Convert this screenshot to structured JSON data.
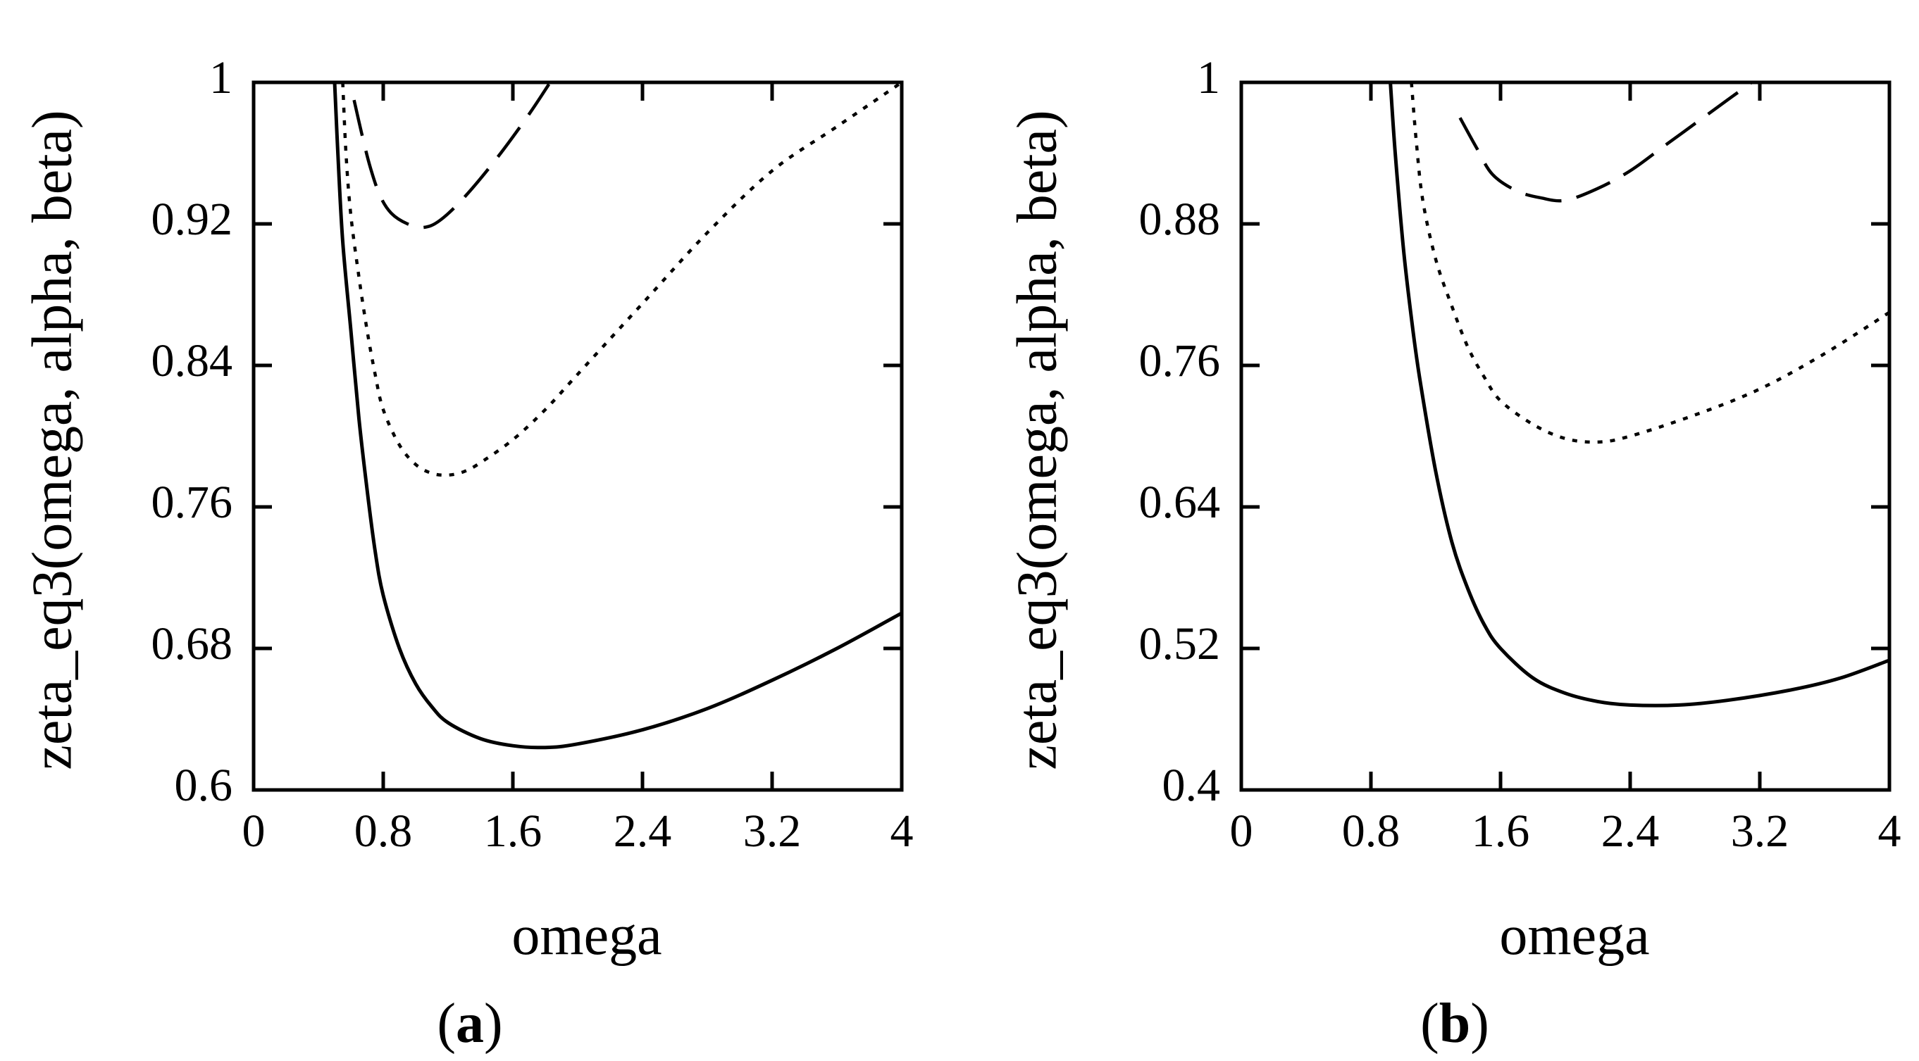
{
  "chart_data": [
    {
      "type": "line",
      "panel_label": "a",
      "xlabel": "omega",
      "ylabel": "zeta_eq3(omega, alpha, beta)",
      "xlim": [
        0,
        4
      ],
      "ylim": [
        0.6,
        1
      ],
      "xticks": [
        0,
        0.8,
        1.6,
        2.4,
        3.2,
        4
      ],
      "xtick_labels": [
        "0",
        "0.8",
        "1.6",
        "2.4",
        "3.2",
        "4"
      ],
      "yticks": [
        0.6,
        0.68,
        0.76,
        0.84,
        0.92,
        1
      ],
      "ytick_labels": [
        "0.6",
        "0.68",
        "0.76",
        "0.84",
        "0.92",
        "1"
      ],
      "series": [
        {
          "name": "solid",
          "style": "solid",
          "x": [
            0.5,
            0.52,
            0.55,
            0.6,
            0.65,
            0.7,
            0.75,
            0.8,
            0.9,
            1.0,
            1.1,
            1.2,
            1.4,
            1.6,
            1.8,
            2.0,
            2.4,
            2.8,
            3.2,
            3.6,
            4.0
          ],
          "y": [
            1.0,
            0.96,
            0.91,
            0.86,
            0.81,
            0.77,
            0.735,
            0.71,
            0.68,
            0.66,
            0.647,
            0.638,
            0.629,
            0.625,
            0.624,
            0.626,
            0.634,
            0.646,
            0.662,
            0.68,
            0.7
          ]
        },
        {
          "name": "dotted",
          "style": "dotted",
          "x": [
            0.55,
            0.57,
            0.6,
            0.65,
            0.7,
            0.75,
            0.8,
            0.9,
            1.0,
            1.1,
            1.2,
            1.3,
            1.4,
            1.6,
            1.8,
            2.0,
            2.4,
            2.8,
            3.2,
            3.6,
            4.0
          ],
          "y": [
            1.0,
            0.96,
            0.925,
            0.89,
            0.86,
            0.835,
            0.815,
            0.795,
            0.784,
            0.779,
            0.778,
            0.78,
            0.785,
            0.798,
            0.815,
            0.835,
            0.875,
            0.915,
            0.95,
            0.975,
            1.0
          ]
        },
        {
          "name": "dashed",
          "style": "dashed",
          "x": [
            0.62,
            0.67,
            0.72,
            0.78,
            0.85,
            0.95,
            1.05,
            1.15,
            1.3,
            1.5,
            1.7,
            1.83
          ],
          "y": [
            0.99,
            0.97,
            0.952,
            0.936,
            0.926,
            0.92,
            0.918,
            0.922,
            0.935,
            0.957,
            0.982,
            1.0
          ]
        }
      ]
    },
    {
      "type": "line",
      "panel_label": "b",
      "xlabel": "omega",
      "ylabel": "zeta_eq3(omega, alpha, beta)",
      "xlim": [
        0,
        4
      ],
      "ylim": [
        0.4,
        1
      ],
      "xticks": [
        0,
        0.8,
        1.6,
        2.4,
        3.2,
        4
      ],
      "xtick_labels": [
        "0",
        "0.8",
        "1.6",
        "2.4",
        "3.2",
        "4"
      ],
      "yticks": [
        0.4,
        0.52,
        0.64,
        0.76,
        0.88,
        1
      ],
      "ytick_labels": [
        "0.4",
        "0.52",
        "0.64",
        "0.76",
        "0.88",
        "1"
      ],
      "series": [
        {
          "name": "solid",
          "style": "solid",
          "x": [
            0.92,
            0.95,
            1.0,
            1.05,
            1.1,
            1.2,
            1.3,
            1.4,
            1.5,
            1.6,
            1.8,
            2.0,
            2.2,
            2.4,
            2.7,
            3.0,
            3.4,
            3.7,
            4.0
          ],
          "y": [
            1.0,
            0.94,
            0.86,
            0.8,
            0.75,
            0.67,
            0.61,
            0.57,
            0.54,
            0.52,
            0.495,
            0.482,
            0.475,
            0.472,
            0.472,
            0.476,
            0.485,
            0.495,
            0.51
          ]
        },
        {
          "name": "dotted",
          "style": "dotted",
          "x": [
            1.05,
            1.08,
            1.12,
            1.2,
            1.3,
            1.4,
            1.5,
            1.6,
            1.8,
            2.0,
            2.2,
            2.4,
            2.8,
            3.2,
            3.6,
            4.0
          ],
          "y": [
            1.0,
            0.95,
            0.9,
            0.85,
            0.81,
            0.775,
            0.75,
            0.73,
            0.71,
            0.698,
            0.695,
            0.7,
            0.718,
            0.74,
            0.77,
            0.805
          ]
        },
        {
          "name": "dashed",
          "style": "dashed",
          "x": [
            1.35,
            1.45,
            1.55,
            1.7,
            1.85,
            2.0,
            2.2,
            2.4,
            2.6,
            2.8,
            3.0,
            3.15
          ],
          "y": [
            0.97,
            0.945,
            0.922,
            0.908,
            0.902,
            0.9,
            0.91,
            0.925,
            0.945,
            0.965,
            0.985,
            1.0
          ]
        }
      ]
    }
  ]
}
